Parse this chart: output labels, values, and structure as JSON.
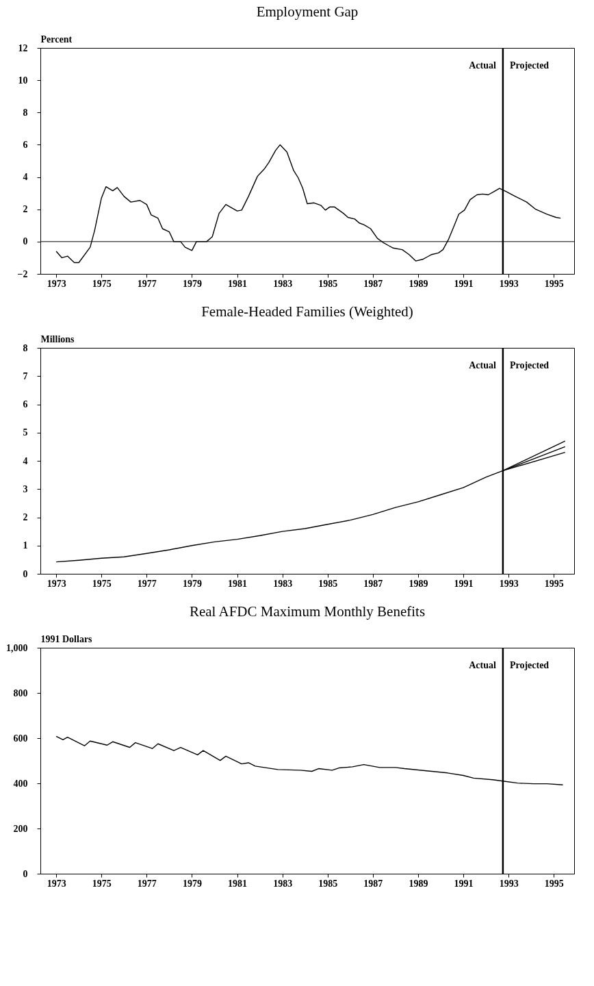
{
  "chart_data": [
    {
      "type": "line",
      "title": "Employment Gap",
      "ylabel": "Percent",
      "x": [
        1973.0,
        1973.25,
        1973.5,
        1973.8,
        1974.0,
        1974.5,
        1974.7,
        1975.0,
        1975.2,
        1975.5,
        1975.7,
        1976.0,
        1976.3,
        1976.7,
        1977.0,
        1977.2,
        1977.5,
        1977.7,
        1978.0,
        1978.2,
        1978.5,
        1978.7,
        1979.0,
        1979.2,
        1979.65,
        1979.9,
        1980.2,
        1980.5,
        1981.0,
        1981.2,
        1981.5,
        1981.9,
        1982.2,
        1982.4,
        1982.7,
        1982.9,
        1983.2,
        1983.5,
        1983.7,
        1983.9,
        1984.1,
        1984.4,
        1984.7,
        1984.9,
        1985.1,
        1985.3,
        1985.7,
        1985.9,
        1986.2,
        1986.4,
        1986.6,
        1986.9,
        1987.2,
        1987.45,
        1987.7,
        1987.9,
        1988.3,
        1988.6,
        1988.9,
        1989.2,
        1989.4,
        1989.6,
        1989.9,
        1990.1,
        1990.35,
        1990.6,
        1990.8,
        1991.05,
        1991.3,
        1991.6,
        1991.85,
        1992.1,
        1992.35,
        1992.6,
        1992.9,
        1993.3,
        1993.8,
        1994.2,
        1994.7,
        1995.1,
        1995.3
      ],
      "series": [
        {
          "color": "#000000",
          "values": [
            -0.6,
            -1.0,
            -0.9,
            -1.3,
            -1.3,
            -0.35,
            0.7,
            2.7,
            3.4,
            3.15,
            3.35,
            2.8,
            2.45,
            2.55,
            2.3,
            1.65,
            1.45,
            0.8,
            0.6,
            0.0,
            0.0,
            -0.35,
            -0.55,
            0.0,
            0.0,
            0.3,
            1.75,
            2.3,
            1.9,
            1.95,
            2.8,
            4.05,
            4.5,
            4.9,
            5.65,
            6.0,
            5.55,
            4.4,
            3.95,
            3.3,
            2.35,
            2.4,
            2.25,
            1.95,
            2.15,
            2.15,
            1.75,
            1.5,
            1.4,
            1.15,
            1.05,
            0.8,
            0.2,
            -0.05,
            -0.25,
            -0.4,
            -0.5,
            -0.8,
            -1.2,
            -1.1,
            -0.95,
            -0.8,
            -0.7,
            -0.5,
            0.15,
            1.0,
            1.7,
            1.95,
            2.6,
            2.9,
            2.95,
            2.9,
            3.1,
            3.3,
            3.1,
            2.8,
            2.45,
            2.0,
            1.7,
            1.5,
            1.45
          ]
        }
      ],
      "xlim": [
        1972.3,
        1995.9
      ],
      "xticks": [
        1973,
        1975,
        1977,
        1979,
        1981,
        1983,
        1985,
        1987,
        1989,
        1991,
        1993,
        1995
      ],
      "ylim": [
        -2,
        12
      ],
      "yticks": [
        {
          "value": -2,
          "label": "−2"
        },
        0,
        2,
        4,
        6,
        8,
        10,
        12
      ],
      "ref_lines": [
        {
          "axis": "y",
          "value": 0,
          "color": "#000000"
        },
        {
          "axis": "x",
          "value": 1992.75,
          "color": "#000000"
        }
      ],
      "annotations": [
        "Actual",
        "Projected"
      ]
    },
    {
      "type": "line",
      "title": "Female-Headed Families (Weighted)",
      "ylabel": "Millions",
      "series": [
        {
          "color": "#000000",
          "x": [
            1973,
            1974,
            1975,
            1976,
            1977,
            1978,
            1979,
            1980,
            1981,
            1982,
            1983,
            1984,
            1985,
            1986,
            1987,
            1988,
            1989,
            1990,
            1991,
            1992,
            1992.75,
            1995.5
          ],
          "values": [
            0.42,
            0.48,
            0.55,
            0.6,
            0.72,
            0.85,
            1.0,
            1.13,
            1.22,
            1.35,
            1.5,
            1.6,
            1.75,
            1.9,
            2.1,
            2.35,
            2.55,
            2.8,
            3.05,
            3.42,
            3.65,
            4.5
          ]
        },
        {
          "color": "#000000",
          "x": [
            1992.75,
            1995.5
          ],
          "values": [
            3.65,
            4.7
          ]
        },
        {
          "color": "#000000",
          "x": [
            1992.75,
            1995.5
          ],
          "values": [
            3.65,
            4.3
          ]
        }
      ],
      "xlim": [
        1972.3,
        1995.9
      ],
      "xticks": [
        1973,
        1975,
        1977,
        1979,
        1981,
        1983,
        1985,
        1987,
        1989,
        1991,
        1993,
        1995
      ],
      "ylim": [
        0,
        8
      ],
      "yticks": [
        0,
        1,
        2,
        3,
        4,
        5,
        6,
        7,
        8
      ],
      "ref_lines": [
        {
          "axis": "x",
          "value": 1992.75,
          "color": "#000000"
        }
      ],
      "annotations": [
        "Actual",
        "Projected"
      ]
    },
    {
      "type": "line",
      "title": "Real AFDC Maximum Monthly Benefits",
      "ylabel": "1991 Dollars",
      "x": [
        1973.0,
        1973.3,
        1973.5,
        1974.25,
        1974.5,
        1975.25,
        1975.5,
        1976.25,
        1976.5,
        1977.25,
        1977.5,
        1978.2,
        1978.5,
        1979.25,
        1979.5,
        1980.25,
        1980.5,
        1981.2,
        1981.5,
        1981.8,
        1982.8,
        1983.8,
        1984.3,
        1984.6,
        1985.2,
        1985.5,
        1986.1,
        1986.6,
        1987.3,
        1988.0,
        1988.4,
        1989.3,
        1990.3,
        1991.0,
        1991.45,
        1992.3,
        1992.75,
        1993.4,
        1994.1,
        1994.7,
        1995.4
      ],
      "series": [
        {
          "color": "#000000",
          "values": [
            608,
            593,
            604,
            566,
            587,
            569,
            584,
            559,
            580,
            554,
            575,
            545,
            559,
            526,
            545,
            501,
            520,
            486,
            491,
            476,
            461,
            458,
            453,
            465,
            458,
            468,
            473,
            483,
            470,
            470,
            465,
            456,
            446,
            435,
            423,
            416,
            410,
            401,
            398,
            398,
            393
          ]
        }
      ],
      "xlim": [
        1972.3,
        1995.9
      ],
      "xticks": [
        1973,
        1975,
        1977,
        1979,
        1981,
        1983,
        1985,
        1987,
        1989,
        1991,
        1993,
        1995
      ],
      "ylim": [
        0,
        1000
      ],
      "yticks": [
        0,
        200,
        400,
        600,
        800,
        {
          "value": 1000,
          "label": "1,000"
        }
      ],
      "ref_lines": [
        {
          "axis": "x",
          "value": 1992.75,
          "color": "#000000"
        }
      ],
      "annotations": [
        "Actual",
        "Projected"
      ]
    }
  ]
}
